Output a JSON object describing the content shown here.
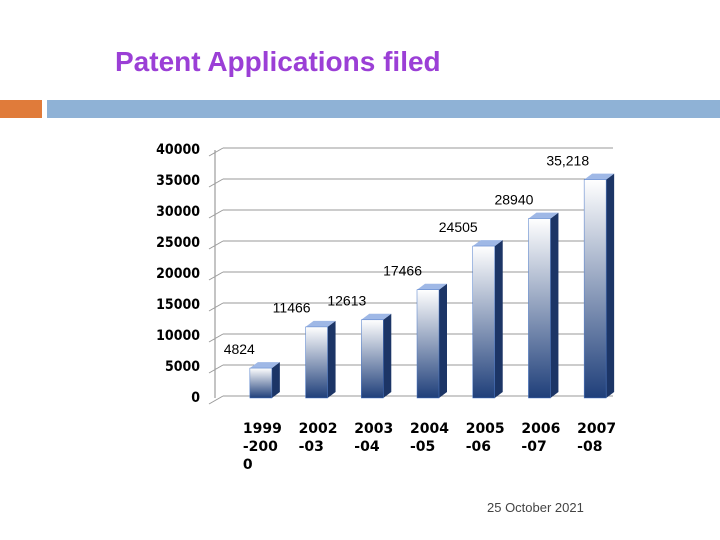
{
  "title": "Patent Applications filed",
  "chart_data": {
    "type": "bar",
    "categories": [
      "1999-2000",
      "2002-03",
      "2003-04",
      "2004-05",
      "2005-06",
      "2006-07",
      "2007-08"
    ],
    "values": [
      4824,
      11466,
      12613,
      17466,
      24505,
      28940,
      35218
    ],
    "value_labels": [
      "4824",
      "11466",
      "12613",
      "17466",
      "24505",
      "28940",
      "35,218"
    ],
    "color": "#4a78c8",
    "ylim": [
      0,
      40000
    ],
    "yticks": [
      0,
      5000,
      10000,
      15000,
      20000,
      25000,
      30000,
      35000,
      40000
    ],
    "grid": true
  },
  "footer": {
    "date": "25 October 2021"
  }
}
